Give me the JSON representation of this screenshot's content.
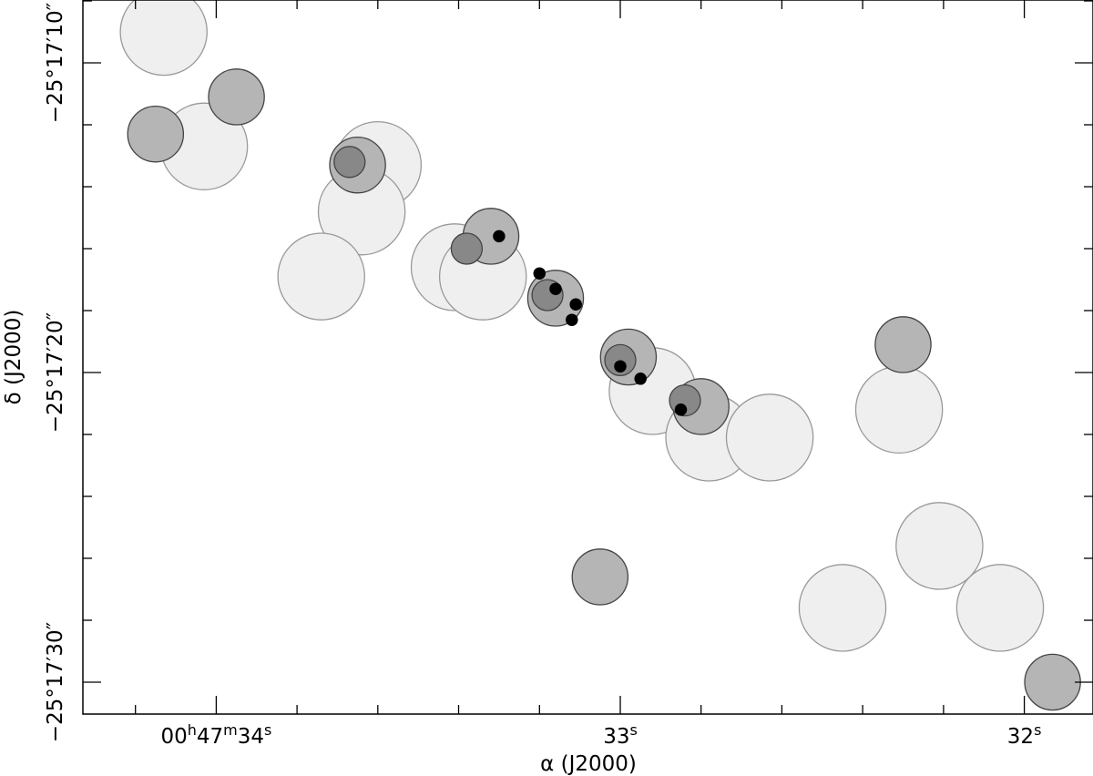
{
  "chart_data": {
    "type": "scatter",
    "title": "",
    "xlabel": "α (J2000)",
    "ylabel": "δ (J2000)",
    "x_unit": "seconds of right ascension (00h47m)",
    "y_unit": "arcseconds below -25°17'00\"",
    "xlim": [
      34.33,
      31.83
    ],
    "ylim": [
      31.03,
      7.97
    ],
    "x_ticks": [
      {
        "value": 34,
        "label_parts": [
          "00",
          "h",
          "47",
          "m",
          "34",
          "s"
        ]
      },
      {
        "value": 33,
        "label_parts": [
          "33",
          "s"
        ]
      },
      {
        "value": 32,
        "label_parts": [
          "32",
          "s"
        ]
      }
    ],
    "x_minor_ticks": [
      34.2,
      33.8,
      33.6,
      33.4,
      33.2,
      32.8,
      32.6,
      32.4,
      32.2
    ],
    "y_ticks": [
      {
        "value": 10,
        "label": "−25°17′10″"
      },
      {
        "value": 20,
        "label": "−25°17′20″"
      },
      {
        "value": 30,
        "label": "−25°17′30″"
      }
    ],
    "y_minor_ticks": [
      8,
      12,
      14,
      16,
      18,
      22,
      24,
      26,
      28
    ],
    "grid": false,
    "series": [
      {
        "style": "large-light-circle",
        "color": "#efefef",
        "stroke": "#999999",
        "radius_arcsec": 1.4,
        "points": [
          {
            "x": 34.13,
            "y": 9.0
          },
          {
            "x": 34.03,
            "y": 12.7
          },
          {
            "x": 33.6,
            "y": 13.3
          },
          {
            "x": 33.64,
            "y": 14.8
          },
          {
            "x": 33.74,
            "y": 16.9
          },
          {
            "x": 33.41,
            "y": 16.6
          },
          {
            "x": 33.34,
            "y": 16.9
          },
          {
            "x": 32.92,
            "y": 20.6
          },
          {
            "x": 32.78,
            "y": 22.1
          },
          {
            "x": 32.63,
            "y": 22.1
          },
          {
            "x": 32.31,
            "y": 21.2
          },
          {
            "x": 32.21,
            "y": 25.6
          },
          {
            "x": 32.06,
            "y": 27.6
          },
          {
            "x": 32.45,
            "y": 27.6
          }
        ]
      },
      {
        "style": "medium-grey-circle",
        "color": "#b5b5b5",
        "stroke": "#444444",
        "radius_arcsec": 0.9,
        "points": [
          {
            "x": 34.15,
            "y": 12.3
          },
          {
            "x": 33.95,
            "y": 11.1
          },
          {
            "x": 33.65,
            "y": 13.3
          },
          {
            "x": 33.32,
            "y": 15.6
          },
          {
            "x": 33.16,
            "y": 17.6
          },
          {
            "x": 32.98,
            "y": 19.5
          },
          {
            "x": 32.8,
            "y": 21.1
          },
          {
            "x": 32.3,
            "y": 19.1
          },
          {
            "x": 33.05,
            "y": 26.6
          },
          {
            "x": 31.93,
            "y": 30.0
          }
        ]
      },
      {
        "style": "small-dark-circle",
        "color": "#888888",
        "stroke": "#444444",
        "radius_arcsec": 0.5,
        "points": [
          {
            "x": 33.67,
            "y": 13.2
          },
          {
            "x": 33.38,
            "y": 16.0
          },
          {
            "x": 33.18,
            "y": 17.5
          },
          {
            "x": 33.0,
            "y": 19.6
          },
          {
            "x": 32.84,
            "y": 20.9
          }
        ]
      },
      {
        "style": "black-dot",
        "color": "#000000",
        "stroke": "#000000",
        "radius_arcsec": 0.18,
        "points": [
          {
            "x": 33.3,
            "y": 15.6
          },
          {
            "x": 33.2,
            "y": 16.8
          },
          {
            "x": 33.16,
            "y": 17.3
          },
          {
            "x": 33.11,
            "y": 17.8
          },
          {
            "x": 33.12,
            "y": 18.3
          },
          {
            "x": 33.0,
            "y": 19.8
          },
          {
            "x": 32.95,
            "y": 20.2
          },
          {
            "x": 32.85,
            "y": 21.2
          }
        ]
      }
    ]
  }
}
